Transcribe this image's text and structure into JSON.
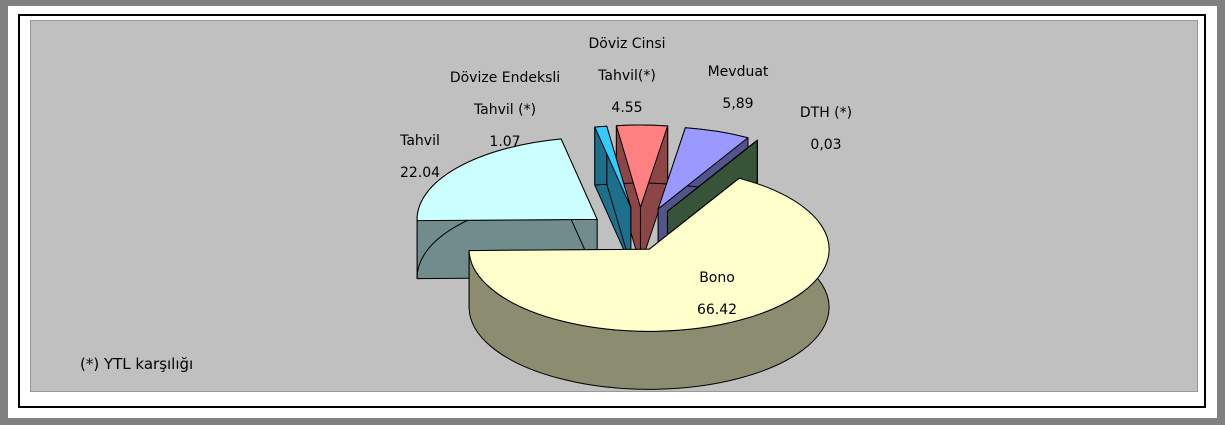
{
  "chart_data": {
    "type": "pie3d",
    "categories": [
      "Bono",
      "Tahvil",
      "Dövize Endeksli Tahvil (*)",
      "Döviz Cinsi Tahvil(*)",
      "Mevduat",
      "DTH (*)"
    ],
    "values": [
      66.42,
      22.04,
      1.07,
      4.55,
      5.89,
      0.03
    ],
    "value_labels": [
      "66.42",
      "22.04",
      "1.07",
      "4.55",
      "5,89",
      "0,03"
    ],
    "colors": [
      "#ffffcc",
      "#ccffff",
      "#33ccff",
      "#ff8080",
      "#9999ff",
      "#669966"
    ],
    "footnote": "(*) YTL karşılığı"
  }
}
